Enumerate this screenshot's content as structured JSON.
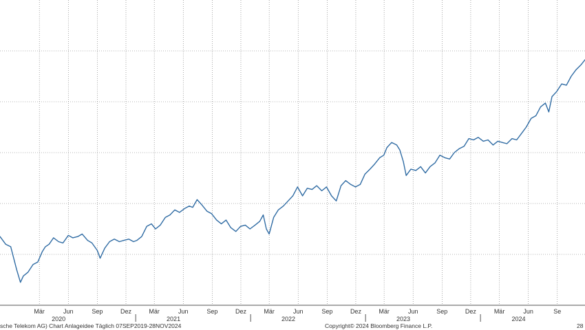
{
  "chart_data": {
    "type": "line",
    "title": "",
    "xlabel": "",
    "ylabel": "",
    "xlim": [
      "2019-10-28",
      "2024-11-28"
    ],
    "ylim": [
      6,
      30
    ],
    "grid": true,
    "line_color": "#2f6ba3",
    "month_ticks": [
      {
        "label": "Mär",
        "date": "2020-03-01"
      },
      {
        "label": "Jun",
        "date": "2020-06-01"
      },
      {
        "label": "Sep",
        "date": "2020-09-01"
      },
      {
        "label": "Dez",
        "date": "2020-12-01"
      },
      {
        "label": "Mär",
        "date": "2021-03-01"
      },
      {
        "label": "Jun",
        "date": "2021-06-01"
      },
      {
        "label": "Sep",
        "date": "2021-09-01"
      },
      {
        "label": "Dez",
        "date": "2021-12-01"
      },
      {
        "label": "Mär",
        "date": "2022-03-01"
      },
      {
        "label": "Jun",
        "date": "2022-06-01"
      },
      {
        "label": "Sep",
        "date": "2022-09-01"
      },
      {
        "label": "Dez",
        "date": "2022-12-01"
      },
      {
        "label": "Mär",
        "date": "2023-03-01"
      },
      {
        "label": "Jun",
        "date": "2023-06-01"
      },
      {
        "label": "Sep",
        "date": "2023-09-01"
      },
      {
        "label": "Dez",
        "date": "2023-12-01"
      },
      {
        "label": "Mär",
        "date": "2024-03-01"
      },
      {
        "label": "Jun",
        "date": "2024-06-01"
      },
      {
        "label": "Se",
        "date": "2024-09-01"
      }
    ],
    "year_labels": [
      {
        "label": "2020",
        "date": "2020-05-01"
      },
      {
        "label": "2021",
        "date": "2021-05-01"
      },
      {
        "label": "2022",
        "date": "2022-05-01"
      },
      {
        "label": "2023",
        "date": "2023-05-01"
      },
      {
        "label": "2024",
        "date": "2024-05-01"
      }
    ],
    "year_dividers": [
      "2021-01-01",
      "2022-01-01",
      "2023-01-01",
      "2024-01-01"
    ],
    "y_gridlines": [
      26,
      22,
      18,
      14,
      10
    ],
    "series": [
      {
        "points": [
          [
            "2019-10-28",
            11.4
          ],
          [
            "2019-11-15",
            10.8
          ],
          [
            "2019-12-01",
            10.6
          ],
          [
            "2019-12-20",
            8.8
          ],
          [
            "2020-01-01",
            7.8
          ],
          [
            "2020-01-10",
            8.3
          ],
          [
            "2020-01-25",
            8.6
          ],
          [
            "2020-02-10",
            9.2
          ],
          [
            "2020-02-25",
            9.4
          ],
          [
            "2020-03-10",
            10.2
          ],
          [
            "2020-03-20",
            10.6
          ],
          [
            "2020-04-01",
            10.8
          ],
          [
            "2020-04-15",
            11.3
          ],
          [
            "2020-05-01",
            11.0
          ],
          [
            "2020-05-15",
            10.9
          ],
          [
            "2020-06-01",
            11.5
          ],
          [
            "2020-06-15",
            11.3
          ],
          [
            "2020-07-01",
            11.4
          ],
          [
            "2020-07-15",
            11.6
          ],
          [
            "2020-08-01",
            11.1
          ],
          [
            "2020-08-15",
            10.9
          ],
          [
            "2020-09-01",
            10.3
          ],
          [
            "2020-09-10",
            9.7
          ],
          [
            "2020-09-25",
            10.5
          ],
          [
            "2020-10-10",
            11.0
          ],
          [
            "2020-10-25",
            11.2
          ],
          [
            "2020-11-10",
            11.0
          ],
          [
            "2020-11-25",
            11.1
          ],
          [
            "2020-12-10",
            11.2
          ],
          [
            "2020-12-25",
            11.0
          ],
          [
            "2021-01-05",
            11.1
          ],
          [
            "2021-01-20",
            11.4
          ],
          [
            "2021-02-05",
            12.2
          ],
          [
            "2021-02-20",
            12.4
          ],
          [
            "2021-03-05",
            12.0
          ],
          [
            "2021-03-20",
            12.3
          ],
          [
            "2021-04-05",
            12.9
          ],
          [
            "2021-04-20",
            13.1
          ],
          [
            "2021-05-05",
            13.5
          ],
          [
            "2021-05-20",
            13.3
          ],
          [
            "2021-06-05",
            13.6
          ],
          [
            "2021-06-20",
            13.8
          ],
          [
            "2021-07-01",
            13.7
          ],
          [
            "2021-07-15",
            14.3
          ],
          [
            "2021-07-30",
            13.9
          ],
          [
            "2021-08-15",
            13.4
          ],
          [
            "2021-08-30",
            13.2
          ],
          [
            "2021-09-15",
            12.7
          ],
          [
            "2021-09-30",
            12.4
          ],
          [
            "2021-10-15",
            12.7
          ],
          [
            "2021-10-30",
            12.1
          ],
          [
            "2021-11-15",
            11.8
          ],
          [
            "2021-11-30",
            12.2
          ],
          [
            "2021-12-15",
            12.3
          ],
          [
            "2021-12-30",
            12.0
          ],
          [
            "2022-01-15",
            12.3
          ],
          [
            "2022-01-30",
            12.6
          ],
          [
            "2022-02-10",
            13.1
          ],
          [
            "2022-02-20",
            12.0
          ],
          [
            "2022-03-01",
            11.6
          ],
          [
            "2022-03-15",
            12.9
          ],
          [
            "2022-03-30",
            13.5
          ],
          [
            "2022-04-15",
            13.8
          ],
          [
            "2022-04-30",
            14.2
          ],
          [
            "2022-05-15",
            14.6
          ],
          [
            "2022-05-30",
            15.3
          ],
          [
            "2022-06-15",
            14.6
          ],
          [
            "2022-06-30",
            15.2
          ],
          [
            "2022-07-15",
            15.1
          ],
          [
            "2022-07-30",
            15.4
          ],
          [
            "2022-08-15",
            15.0
          ],
          [
            "2022-08-30",
            15.3
          ],
          [
            "2022-09-15",
            14.6
          ],
          [
            "2022-09-30",
            14.2
          ],
          [
            "2022-10-15",
            15.4
          ],
          [
            "2022-10-30",
            15.8
          ],
          [
            "2022-11-15",
            15.5
          ],
          [
            "2022-11-30",
            15.3
          ],
          [
            "2022-12-15",
            15.5
          ],
          [
            "2022-12-30",
            16.3
          ],
          [
            "2023-01-15",
            16.7
          ],
          [
            "2023-01-30",
            17.1
          ],
          [
            "2023-02-15",
            17.6
          ],
          [
            "2023-02-28",
            17.8
          ],
          [
            "2023-03-10",
            18.4
          ],
          [
            "2023-03-25",
            18.8
          ],
          [
            "2023-04-10",
            18.6
          ],
          [
            "2023-04-20",
            18.2
          ],
          [
            "2023-05-01",
            17.3
          ],
          [
            "2023-05-10",
            16.2
          ],
          [
            "2023-05-25",
            16.7
          ],
          [
            "2023-06-10",
            16.6
          ],
          [
            "2023-06-25",
            16.9
          ],
          [
            "2023-07-10",
            16.4
          ],
          [
            "2023-07-25",
            16.9
          ],
          [
            "2023-08-10",
            17.2
          ],
          [
            "2023-08-25",
            17.8
          ],
          [
            "2023-09-10",
            17.6
          ],
          [
            "2023-09-25",
            17.5
          ],
          [
            "2023-10-10",
            18.0
          ],
          [
            "2023-10-25",
            18.3
          ],
          [
            "2023-11-10",
            18.5
          ],
          [
            "2023-11-25",
            19.1
          ],
          [
            "2023-12-10",
            19.0
          ],
          [
            "2023-12-25",
            19.2
          ],
          [
            "2024-01-10",
            18.9
          ],
          [
            "2024-01-25",
            19.0
          ],
          [
            "2024-02-10",
            18.6
          ],
          [
            "2024-02-25",
            18.9
          ],
          [
            "2024-03-10",
            18.8
          ],
          [
            "2024-03-25",
            18.7
          ],
          [
            "2024-04-10",
            19.1
          ],
          [
            "2024-04-25",
            19.0
          ],
          [
            "2024-05-10",
            19.5
          ],
          [
            "2024-05-25",
            20.0
          ],
          [
            "2024-06-10",
            20.7
          ],
          [
            "2024-06-25",
            20.9
          ],
          [
            "2024-07-10",
            21.6
          ],
          [
            "2024-07-25",
            21.9
          ],
          [
            "2024-08-05",
            21.2
          ],
          [
            "2024-08-15",
            22.4
          ],
          [
            "2024-08-30",
            22.8
          ],
          [
            "2024-09-15",
            23.4
          ],
          [
            "2024-09-30",
            23.3
          ],
          [
            "2024-10-15",
            24.0
          ],
          [
            "2024-10-30",
            24.5
          ],
          [
            "2024-11-15",
            24.9
          ],
          [
            "2024-11-28",
            25.3
          ]
        ]
      }
    ]
  },
  "footer": {
    "left": "sche Telekom AG) Chart Anlageidee  Täglich 07SEP2019-28NOV2024",
    "center": "Copyright© 2024 Bloomberg Finance L.P.",
    "right": "28"
  }
}
